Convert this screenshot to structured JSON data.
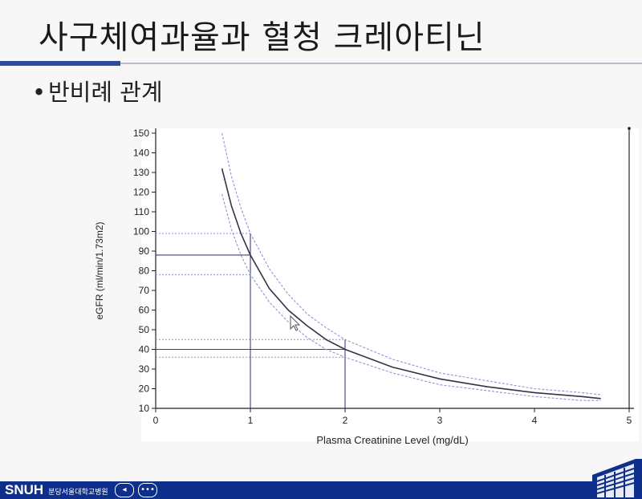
{
  "slide": {
    "title": "사구체여과율과 혈청 크레아티닌",
    "bullet": "반비례 관계"
  },
  "footer": {
    "logo": "SNUH",
    "logo_sub": "분당서울대학교병원"
  },
  "colors": {
    "accent": "#2e4a9a",
    "footer_bar": "#0f2f8c",
    "main_curve": "#333344",
    "band_curve": "#8f92d8",
    "guide_line": "#3b3f7a"
  },
  "chart_data": {
    "type": "line",
    "title": "",
    "xlabel": "Plasma Creatinine Level (mg/dL)",
    "ylabel": "eGFR (ml/min/1.73m2)",
    "xlim": [
      0,
      5
    ],
    "ylim": [
      10,
      150
    ],
    "xticks": [
      0,
      1,
      2,
      3,
      4,
      5
    ],
    "yticks": [
      10,
      20,
      30,
      40,
      50,
      60,
      70,
      80,
      90,
      100,
      110,
      120,
      130,
      140,
      150
    ],
    "grid": false,
    "legend": "none",
    "series": [
      {
        "role": "estimate",
        "x": [
          0.7,
          0.8,
          0.9,
          1.0,
          1.2,
          1.4,
          1.6,
          1.8,
          2.0,
          2.5,
          3.0,
          3.5,
          4.0,
          4.5,
          4.7
        ],
        "y": [
          132,
          113,
          99,
          88,
          71,
          60,
          52,
          45,
          40,
          31,
          25,
          21,
          18,
          16,
          15
        ]
      },
      {
        "role": "upper-bound",
        "x": [
          0.7,
          0.8,
          0.9,
          1.0,
          1.2,
          1.4,
          1.6,
          1.8,
          2.0,
          2.5,
          3.0,
          3.5,
          4.0,
          4.5,
          4.7
        ],
        "y": [
          150,
          128,
          112,
          99,
          81,
          68,
          58,
          51,
          45,
          35,
          28,
          24,
          20,
          18,
          17
        ]
      },
      {
        "role": "lower-bound",
        "x": [
          0.7,
          0.8,
          0.9,
          1.0,
          1.2,
          1.4,
          1.6,
          1.8,
          2.0,
          2.5,
          3.0,
          3.5,
          4.0,
          4.5,
          4.7
        ],
        "y": [
          119,
          101,
          88,
          78,
          64,
          54,
          46,
          40,
          36,
          28,
          22,
          19,
          16,
          14,
          14
        ]
      }
    ],
    "reference_lines": [
      {
        "x": 1,
        "y": 88,
        "style": "solid"
      },
      {
        "x": 1,
        "y": 99,
        "style": "dotted"
      },
      {
        "x": 1,
        "y": 78,
        "style": "dotted"
      },
      {
        "x": 2,
        "y": 40,
        "style": "solid"
      },
      {
        "x": 2,
        "y": 45,
        "style": "dotted"
      },
      {
        "x": 2,
        "y": 36,
        "style": "dotted"
      }
    ]
  }
}
